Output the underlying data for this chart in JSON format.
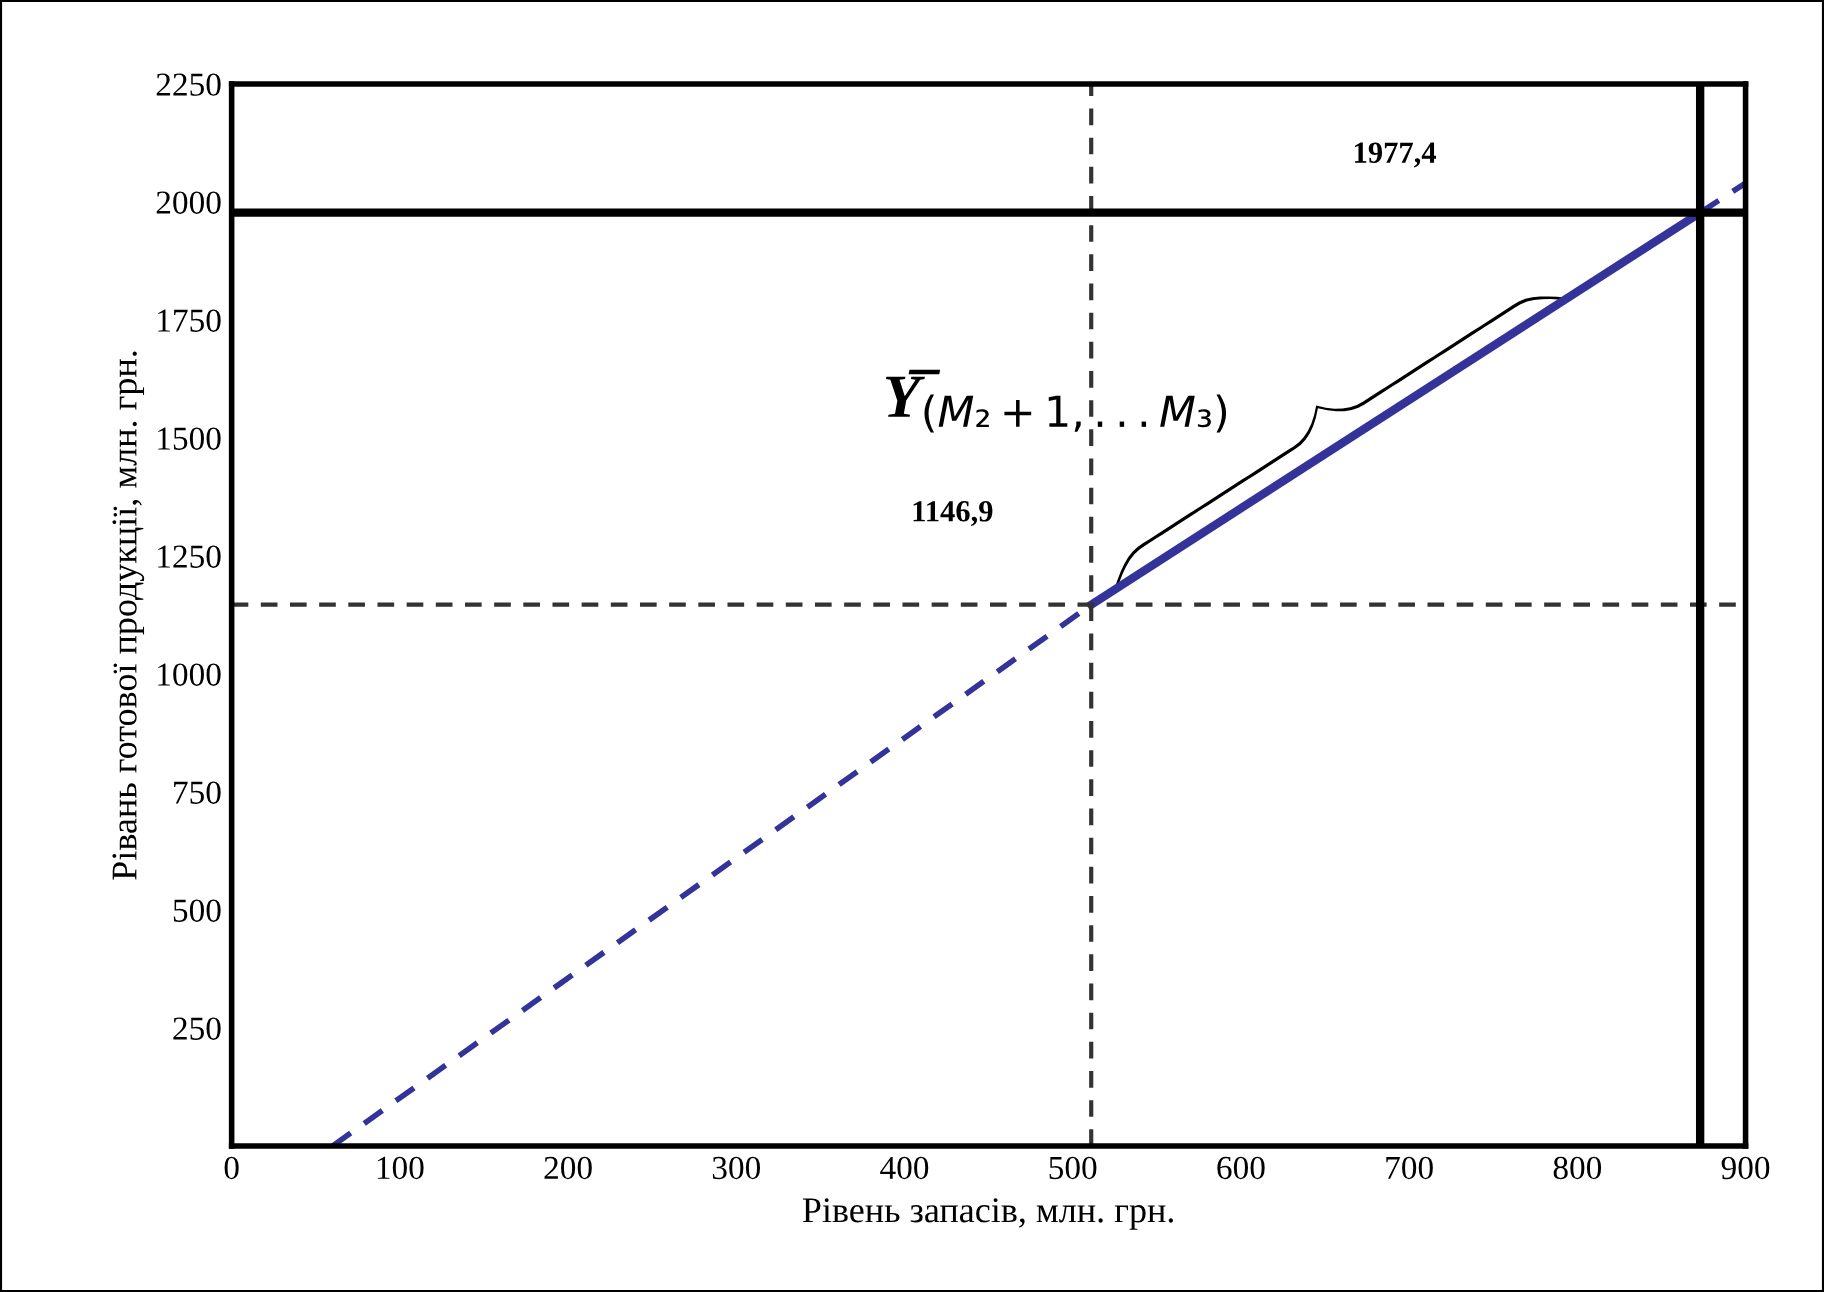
{
  "chart_data": {
    "type": "line",
    "xlabel": "Рівень запасів, млн. грн.",
    "ylabel": "Рівань готової продукції, млн. грн.",
    "xlim": [
      0,
      900
    ],
    "ylim": [
      0,
      2250
    ],
    "xticks": [
      0,
      100,
      200,
      300,
      400,
      500,
      600,
      700,
      800,
      900
    ],
    "yticks": [
      250,
      500,
      750,
      1000,
      1250,
      1500,
      1750,
      2000,
      2250
    ],
    "grid": false,
    "legend": false,
    "marker": "none",
    "series": [
      {
        "color": "#333399",
        "line_style": "dashed",
        "x": [
          60,
          511
        ],
        "values": [
          0,
          1146.9
        ]
      },
      {
        "color": "#333399",
        "line_style": "solid",
        "x": [
          511,
          873
        ],
        "values": [
          1146.9,
          1977.4
        ]
      },
      {
        "color": "#333399",
        "line_style": "dashed",
        "x": [
          873,
          900
        ],
        "values": [
          1977.4,
          2040
        ]
      }
    ],
    "ref_lines": [
      {
        "axis": "x",
        "value": 511,
        "color": "#333333",
        "line_style": "dashed"
      },
      {
        "axis": "y",
        "value": 1146.9,
        "label": "1146,9",
        "color": "#333333",
        "line_style": "dashed"
      },
      {
        "axis": "x",
        "value": 873,
        "color": "#000000",
        "line_style": "solid"
      },
      {
        "axis": "y",
        "value": 1977.4,
        "label": "1977,4",
        "color": "#000000",
        "line_style": "solid"
      }
    ],
    "annotations": [
      "Y̅$_{(M₂+1,...M₃)}$"
    ]
  }
}
